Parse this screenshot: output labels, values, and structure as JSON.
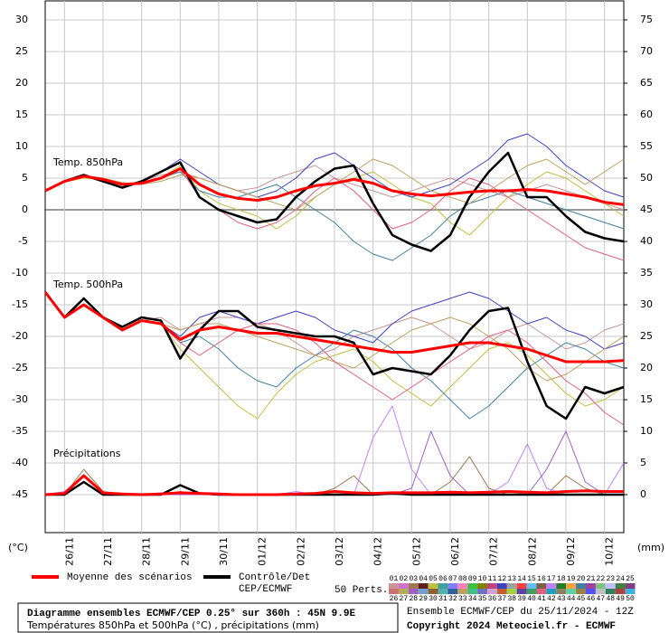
{
  "chart_data": {
    "type": "line",
    "panels": [
      "Temp. 850hPa",
      "Temp. 500hPa",
      "Précipitations"
    ],
    "y_unit": "(°C)",
    "y2_unit": "(mm)",
    "x": [
      0,
      12,
      24,
      36,
      48,
      60,
      72,
      84,
      96,
      108,
      120,
      132,
      144,
      156,
      168,
      180,
      192,
      204,
      216,
      228,
      240,
      252,
      264,
      276,
      288,
      300,
      312,
      324,
      336,
      348,
      360
    ],
    "xlim": [
      0,
      360
    ],
    "xticks": [
      {
        "value": 12,
        "label": "26/11"
      },
      {
        "value": 36,
        "label": "27/11"
      },
      {
        "value": 60,
        "label": "28/11"
      },
      {
        "value": 84,
        "label": "29/11"
      },
      {
        "value": 108,
        "label": "30/11"
      },
      {
        "value": 132,
        "label": "01/12"
      },
      {
        "value": 156,
        "label": "02/12"
      },
      {
        "value": 180,
        "label": "03/12"
      },
      {
        "value": 204,
        "label": "04/12"
      },
      {
        "value": 228,
        "label": "05/12"
      },
      {
        "value": 252,
        "label": "06/12"
      },
      {
        "value": 276,
        "label": "07/12"
      },
      {
        "value": 300,
        "label": "08/12"
      },
      {
        "value": 324,
        "label": "09/12"
      },
      {
        "value": 348,
        "label": "10/12"
      }
    ],
    "ylim": [
      -51,
      33
    ],
    "yticks": [
      30,
      25,
      20,
      15,
      10,
      5,
      0,
      -5,
      -10,
      -15,
      -20,
      -25,
      -30,
      -35,
      -40,
      -45
    ],
    "y2lim": [
      -6,
      78
    ],
    "y2ticks": [
      75,
      70,
      65,
      60,
      55,
      50,
      45,
      40,
      35,
      30,
      25,
      20,
      15,
      10,
      5,
      0
    ],
    "grid": true,
    "series": [
      {
        "color": "#c89696",
        "width": 1,
        "values": [
          3,
          4.6,
          5.2,
          4.5,
          4,
          4.5,
          5.5,
          6,
          5,
          4,
          3,
          3.5,
          5,
          6,
          7,
          5,
          4,
          3,
          2,
          3,
          4,
          5,
          4,
          3,
          2,
          3,
          4,
          3,
          2,
          1,
          0
        ]
      },
      {
        "color": "#c0c040",
        "width": 1,
        "values": [
          3,
          4.4,
          5,
          4.8,
          4.2,
          4,
          5,
          7,
          3,
          1,
          0,
          -1,
          -3,
          -1,
          2,
          4,
          5,
          6,
          4,
          2,
          1,
          -2,
          -4,
          -1,
          2,
          4,
          6,
          5,
          3,
          1,
          -1
        ]
      },
      {
        "color": "#4040c0",
        "width": 1,
        "values": [
          3,
          4.5,
          5.4,
          5,
          4,
          4.3,
          6,
          8,
          6,
          4,
          3,
          2,
          3,
          5,
          8,
          9,
          7,
          5,
          3,
          2,
          3,
          4,
          6,
          8,
          11,
          12,
          10,
          7,
          5,
          3,
          2
        ]
      },
      {
        "color": "#4080a0",
        "width": 1,
        "values": [
          3,
          4.5,
          5.2,
          4.6,
          4.1,
          4.2,
          5,
          6,
          3,
          2,
          2,
          3,
          4,
          2,
          0,
          -2,
          -5,
          -7,
          -8,
          -6,
          -4,
          -1,
          1,
          2,
          3,
          2,
          1,
          0,
          -1,
          -2,
          -3
        ]
      },
      {
        "color": "#c0a060",
        "width": 1,
        "values": [
          3,
          4.5,
          5.3,
          5,
          4.3,
          4,
          4.5,
          5.5,
          5,
          4,
          3,
          2,
          1,
          0,
          2,
          4,
          6,
          8,
          7,
          5,
          3,
          2,
          1,
          3,
          5,
          7,
          8,
          6,
          4,
          6,
          8
        ]
      },
      {
        "color": "#e06080",
        "width": 1,
        "values": [
          3,
          4.5,
          5.3,
          4.7,
          4,
          4.2,
          5,
          6.5,
          2,
          0,
          -2,
          -3,
          -2,
          0,
          3,
          5,
          3,
          0,
          -3,
          -2,
          0,
          3,
          5,
          4,
          2,
          0,
          -2,
          -4,
          -6,
          -7,
          -8
        ]
      },
      {
        "color": "#c89696",
        "width": 1,
        "values": [
          -13,
          -17,
          -15,
          -17,
          -19,
          -17.5,
          -17,
          -19,
          -18,
          -17,
          -17,
          -18,
          -19,
          -21,
          -23,
          -22,
          -20,
          -19,
          -18,
          -17,
          -18,
          -20,
          -22,
          -21,
          -19,
          -18,
          -20,
          -22,
          -21,
          -19,
          -18
        ]
      },
      {
        "color": "#c0c040",
        "width": 1,
        "values": [
          -13,
          -17,
          -15,
          -17,
          -19,
          -17.5,
          -18,
          -22,
          -25,
          -28,
          -31,
          -33,
          -29,
          -26,
          -24,
          -23,
          -22,
          -24,
          -27,
          -29,
          -31,
          -28,
          -25,
          -22,
          -21,
          -23,
          -26,
          -29,
          -31,
          -30,
          -28
        ]
      },
      {
        "color": "#4040c0",
        "width": 1,
        "values": [
          -13,
          -17,
          -15,
          -17,
          -19,
          -17.5,
          -18,
          -20,
          -17,
          -16,
          -17,
          -18,
          -17,
          -16,
          -17,
          -19,
          -20,
          -21,
          -18,
          -16,
          -15,
          -14,
          -13,
          -14,
          -16,
          -18,
          -17,
          -19,
          -20,
          -22,
          -21
        ]
      },
      {
        "color": "#4080a0",
        "width": 1,
        "values": [
          -13,
          -17,
          -15,
          -17,
          -19,
          -17.5,
          -18,
          -21,
          -20,
          -22,
          -25,
          -27,
          -28,
          -25,
          -23,
          -21,
          -19,
          -20,
          -22,
          -25,
          -27,
          -30,
          -33,
          -31,
          -28,
          -25,
          -23,
          -21,
          -22,
          -24,
          -25
        ]
      },
      {
        "color": "#c0a060",
        "width": 1,
        "values": [
          -13,
          -17,
          -15,
          -17,
          -19,
          -17.5,
          -18,
          -19,
          -18,
          -18,
          -19,
          -20,
          -21,
          -22,
          -23,
          -24,
          -25,
          -23,
          -21,
          -19,
          -18,
          -17,
          -18,
          -20,
          -22,
          -25,
          -27,
          -26,
          -24,
          -22,
          -20
        ]
      },
      {
        "color": "#e06080",
        "width": 1,
        "values": [
          -13,
          -17,
          -15,
          -17,
          -19,
          -17.5,
          -18,
          -21,
          -23,
          -21,
          -19,
          -18,
          -18,
          -19,
          -21,
          -24,
          -26,
          -28,
          -30,
          -28,
          -26,
          -24,
          -22,
          -20,
          -19,
          -21,
          -24,
          -27,
          -29,
          -32,
          -34
        ]
      },
      {
        "color": "#a07850",
        "width": 1,
        "axis": "y2",
        "values": [
          0,
          0,
          4,
          0.5,
          0,
          0,
          0,
          0.5,
          0,
          0,
          0,
          0,
          0,
          0,
          0,
          1,
          3,
          0,
          0,
          0,
          0,
          2,
          6,
          1,
          0,
          0,
          0,
          3,
          1,
          0,
          0
        ]
      },
      {
        "color": "#c080ff",
        "width": 1,
        "axis": "y2",
        "values": [
          0,
          0.5,
          3,
          0.2,
          0,
          0,
          0.3,
          0,
          0,
          0,
          0,
          0,
          0,
          0.5,
          0,
          0,
          0,
          9,
          14,
          4,
          0,
          0,
          0,
          0,
          2,
          8,
          1,
          0,
          0,
          0,
          5
        ]
      },
      {
        "color": "#a060c0",
        "width": 1,
        "axis": "y2",
        "values": [
          0,
          0,
          2,
          0,
          0,
          0,
          0,
          0,
          0,
          0,
          0,
          0,
          0,
          0,
          0,
          0,
          0,
          0,
          0,
          1,
          10,
          3,
          0,
          0,
          0,
          0,
          4,
          10,
          2,
          0,
          0
        ]
      },
      {
        "color": "#000000",
        "width": 2.5,
        "values": [
          3,
          4.5,
          5.5,
          4.5,
          3.5,
          4.5,
          6,
          7.5,
          2,
          0,
          -1,
          -2,
          -1.5,
          2,
          4.5,
          6.5,
          7,
          1,
          -4,
          -5.5,
          -6.5,
          -4,
          2,
          6,
          9,
          2,
          2,
          -1,
          -3.5,
          -4.5,
          -5
        ]
      },
      {
        "color": "#000000",
        "width": 2.5,
        "values": [
          -13,
          -17,
          -14,
          -17,
          -18.5,
          -17,
          -17.5,
          -23.5,
          -19,
          -16,
          -16,
          -18.5,
          -19,
          -19.5,
          -20,
          -20,
          -21,
          -26,
          -25,
          -25.5,
          -26,
          -23,
          -19,
          -16,
          -15.5,
          -24,
          -31,
          -33,
          -28,
          -29,
          -28
        ]
      },
      {
        "color": "#000000",
        "width": 2.5,
        "axis": "y2",
        "values": [
          0,
          0,
          2,
          0,
          0,
          0,
          0,
          1.5,
          0.2,
          0,
          0,
          0,
          0,
          0,
          0,
          0,
          0,
          0,
          0.2,
          0,
          0,
          0,
          0,
          0,
          0,
          0,
          0,
          0,
          0,
          0,
          0
        ]
      },
      {
        "color": "#ff0000",
        "width": 3,
        "values": [
          3,
          4.5,
          5.3,
          4.8,
          4,
          4.2,
          5,
          6.5,
          4,
          2.5,
          1.8,
          1.5,
          2,
          3,
          3.8,
          4.2,
          4.8,
          4.2,
          3,
          2.5,
          2.2,
          2.5,
          2.8,
          3,
          3,
          3.2,
          3,
          2.5,
          2,
          1.2,
          0.8
        ]
      },
      {
        "color": "#ff0000",
        "width": 3,
        "values": [
          -13,
          -17,
          -15,
          -17,
          -19,
          -17.5,
          -18,
          -20.5,
          -19,
          -18.5,
          -19,
          -19.5,
          -19.5,
          -20,
          -20.5,
          -21,
          -21.5,
          -22,
          -22.5,
          -22.5,
          -22,
          -21.5,
          -21,
          -21,
          -21.5,
          -22,
          -23,
          -24,
          -24,
          -24,
          -23.8
        ]
      },
      {
        "color": "#ff0000",
        "width": 3,
        "axis": "y2",
        "values": [
          0,
          0.2,
          3,
          0.3,
          0.1,
          0,
          0.1,
          0.3,
          0.2,
          0.1,
          0,
          0,
          0,
          0.1,
          0.2,
          0.5,
          0.3,
          0.2,
          0.3,
          0.3,
          0.3,
          0.4,
          0.3,
          0.4,
          0.5,
          0.4,
          0.3,
          0.5,
          0.6,
          0.5,
          0.5
        ]
      }
    ],
    "legend": [
      {
        "lines": [
          "Moyenne des scénarios"
        ],
        "color": "#ff0000"
      },
      {
        "lines": [
          "Contrôle/Det",
          "CEP/ECMWF"
        ],
        "color": "#000000"
      }
    ],
    "members_title": "50 Perts.",
    "members": [
      {
        "label": "01",
        "color": "#c89696"
      },
      {
        "label": "02",
        "color": "#d070d0"
      },
      {
        "label": "03",
        "color": "#a07850"
      },
      {
        "label": "04",
        "color": "#602020"
      },
      {
        "label": "05",
        "color": "#c0c040"
      },
      {
        "label": "06",
        "color": "#40a0a0"
      },
      {
        "label": "07",
        "color": "#8080ff"
      },
      {
        "label": "08",
        "color": "#ff80c0"
      },
      {
        "label": "09",
        "color": "#40c040"
      },
      {
        "label": "10",
        "color": "#808000"
      },
      {
        "label": "11",
        "color": "#c04080"
      },
      {
        "label": "12",
        "color": "#4040c0"
      },
      {
        "label": "13",
        "color": "#a0a0a0"
      },
      {
        "label": "14",
        "color": "#ff4040"
      },
      {
        "label": "15",
        "color": "#60c0ff"
      },
      {
        "label": "16",
        "color": "#806040"
      },
      {
        "label": "17",
        "color": "#c080ff"
      },
      {
        "label": "18",
        "color": "#208020"
      },
      {
        "label": "19",
        "color": "#ffa040"
      },
      {
        "label": "20",
        "color": "#4080a0"
      },
      {
        "label": "21",
        "color": "#a040a0"
      },
      {
        "label": "22",
        "color": "#80c080"
      },
      {
        "label": "23",
        "color": "#c0c0ff"
      },
      {
        "label": "24",
        "color": "#408040"
      },
      {
        "label": "25",
        "color": "#804080"
      },
      {
        "label": "26",
        "color": "#d07070"
      },
      {
        "label": "27",
        "color": "#b0b050"
      },
      {
        "label": "28",
        "color": "#a060c0"
      },
      {
        "label": "29",
        "color": "#70a0d0"
      },
      {
        "label": "30",
        "color": "#906030"
      },
      {
        "label": "31",
        "color": "#50b0b0"
      },
      {
        "label": "32",
        "color": "#3060a0"
      },
      {
        "label": "33",
        "color": "#c0a060"
      },
      {
        "label": "34",
        "color": "#40c080"
      },
      {
        "label": "35",
        "color": "#7070c0"
      },
      {
        "label": "36",
        "color": "#d0a0d0"
      },
      {
        "label": "37",
        "color": "#c06030"
      },
      {
        "label": "38",
        "color": "#a0d040"
      },
      {
        "label": "39",
        "color": "#6040a0"
      },
      {
        "label": "40",
        "color": "#40a060"
      },
      {
        "label": "41",
        "color": "#e06080"
      },
      {
        "label": "42",
        "color": "#20a0c0"
      },
      {
        "label": "43",
        "color": "#908060"
      },
      {
        "label": "44",
        "color": "#60d0a0"
      },
      {
        "label": "45",
        "color": "#a08040"
      },
      {
        "label": "46",
        "color": "#5050ff"
      },
      {
        "label": "47",
        "color": "#c0c0c0"
      },
      {
        "label": "48",
        "color": "#308060"
      },
      {
        "label": "49",
        "color": "#b04040"
      },
      {
        "label": "50",
        "color": "#40b0e0"
      }
    ],
    "footer": {
      "title": "Diagramme ensembles ECMWF/CEP 0.25° sur 360h : 45N 9.9E",
      "subtitle": "Températures 850hPa et 500hPa (°C) , précipitations (mm)",
      "run": "Ensemble ECMWF/CEP du 25/11/2024 - 12Z",
      "copyright": "Copyright 2024 Meteociel.fr - ECMWF"
    }
  }
}
